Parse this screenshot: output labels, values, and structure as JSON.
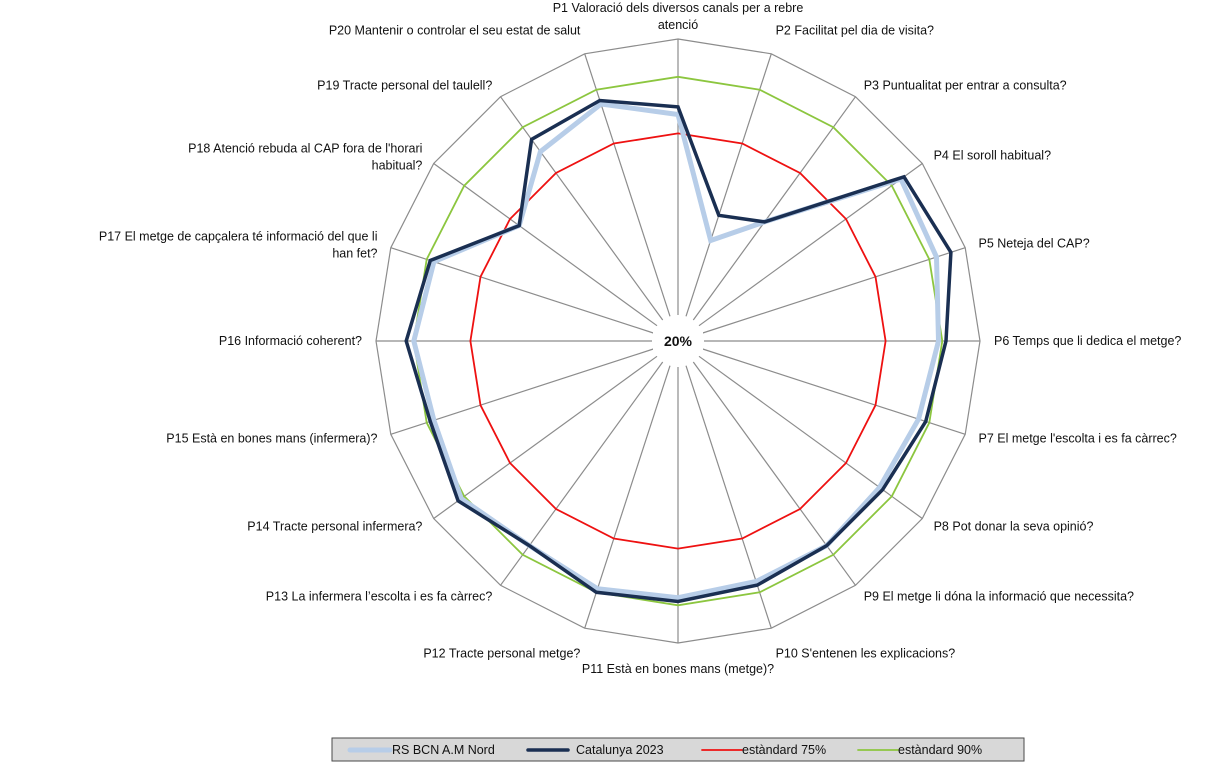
{
  "chart_data": {
    "type": "radar",
    "categories": [
      "P1 Valoració dels diversos canals per a rebre atenció",
      "P2 Facilitat pel dia de visita?",
      "P3 Puntualitat per entrar a consulta?",
      "P4 El soroll habitual?",
      "P5 Neteja del CAP?",
      "P6 Temps que li dedica el metge?",
      "P7 El metge l'escolta i es fa càrrec?",
      "P8 Pot donar la seva opinió?",
      "P9 El metge li dóna la  informació que necessita?",
      "P10 S'entenen les explicacions?",
      "P11 Està en bones mans (metge)?",
      "P12 Tracte personal metge?",
      "P13 La infermera l’escolta i es fa càrrec?",
      "P14 Tracte personal infermera?",
      "P15 Està en bones mans (infermera)?",
      "P16 Informació coherent?",
      "P17 El metge de capçalera té informació del que li han fet?",
      "P18 Atenció rebuda al CAP fora de l'horari habitual?",
      "P19 Tracte personal del taulell?",
      "P20 Mantenir o controlar el seu estat de salut"
    ],
    "center_label": "20%",
    "rmin": 20,
    "rmax": 100,
    "rings": 5,
    "series": [
      {
        "name": "RS BCN A.M Nord",
        "color": "#b7cde8",
        "width": 5,
        "values": [
          80,
          48,
          59,
          93,
          92,
          89,
          87,
          86,
          87,
          87,
          88,
          89,
          87,
          91,
          88,
          90,
          88,
          72,
          82,
          86
        ]
      },
      {
        "name": "Catalunya 2023",
        "color": "#1a2f52",
        "width": 3.5,
        "values": [
          82,
          55,
          59,
          94,
          96,
          91,
          89,
          87,
          87,
          88,
          89,
          90,
          87,
          92,
          89,
          92,
          89,
          72,
          86,
          87
        ]
      },
      {
        "name": "estàndard 75%",
        "color": "#ee1111",
        "width": 1.8,
        "values": [
          75,
          75,
          75,
          75,
          75,
          75,
          75,
          75,
          75,
          75,
          75,
          75,
          75,
          75,
          75,
          75,
          75,
          75,
          75,
          75
        ]
      },
      {
        "name": "estàndard 90%",
        "color": "#8cc63f",
        "width": 1.8,
        "values": [
          90,
          90,
          90,
          90,
          90,
          90,
          90,
          90,
          90,
          90,
          90,
          90,
          90,
          90,
          90,
          90,
          90,
          90,
          90,
          90
        ]
      }
    ],
    "legend_position": "bottom",
    "grid": true
  }
}
